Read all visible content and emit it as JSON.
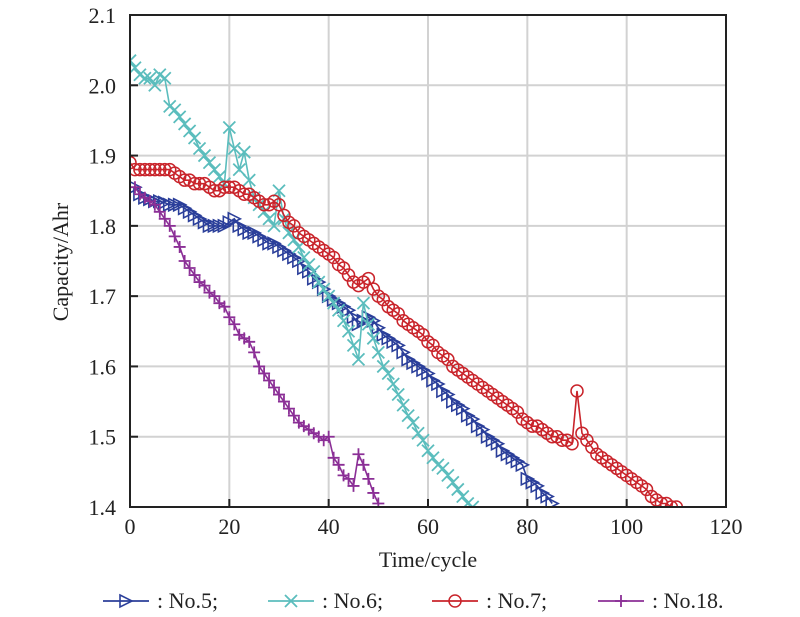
{
  "chart_data": {
    "type": "line",
    "title": "",
    "xlabel": "Time/cycle",
    "ylabel": "Capacity/Ahr",
    "xlim": [
      0,
      120
    ],
    "ylim": [
      1.4,
      2.1
    ],
    "xticks": [
      0,
      20,
      40,
      60,
      80,
      100,
      120
    ],
    "xtick_labels": [
      "0",
      "20",
      "40",
      "60",
      "80",
      "100",
      "120"
    ],
    "yticks": [
      1.4,
      1.5,
      1.6,
      1.7,
      1.8,
      1.9,
      2.0,
      2.1
    ],
    "ytick_labels": [
      "1.4",
      "1.5",
      "1.6",
      "1.7",
      "1.8",
      "1.9",
      "2.0",
      "2.1"
    ],
    "grid": true,
    "legend_position": "bottom",
    "series": [
      {
        "name": "No.5",
        "legend_label": ": No.5;",
        "color": "#2b3f9a",
        "marker": "triangle-right",
        "x": [
          1,
          2,
          3,
          4,
          5,
          6,
          7,
          8,
          9,
          10,
          11,
          12,
          13,
          14,
          15,
          16,
          17,
          18,
          19,
          20,
          21,
          22,
          23,
          24,
          25,
          26,
          27,
          28,
          29,
          30,
          31,
          32,
          33,
          34,
          35,
          36,
          37,
          38,
          39,
          40,
          41,
          42,
          43,
          44,
          45,
          46,
          47,
          48,
          49,
          50,
          51,
          52,
          53,
          54,
          55,
          56,
          57,
          58,
          59,
          60,
          61,
          62,
          63,
          64,
          65,
          66,
          67,
          68,
          69,
          70,
          71,
          72,
          73,
          74,
          75,
          76,
          77,
          78,
          79,
          80,
          81,
          82,
          83,
          84,
          85
        ],
        "y": [
          1.855,
          1.845,
          1.84,
          1.838,
          1.835,
          1.835,
          1.833,
          1.83,
          1.83,
          1.83,
          1.825,
          1.82,
          1.815,
          1.81,
          1.805,
          1.8,
          1.8,
          1.8,
          1.8,
          1.805,
          1.81,
          1.8,
          1.795,
          1.79,
          1.79,
          1.785,
          1.78,
          1.775,
          1.775,
          1.77,
          1.765,
          1.76,
          1.755,
          1.75,
          1.74,
          1.735,
          1.725,
          1.72,
          1.71,
          1.7,
          1.695,
          1.69,
          1.685,
          1.68,
          1.67,
          1.66,
          1.665,
          1.67,
          1.665,
          1.655,
          1.645,
          1.64,
          1.635,
          1.63,
          1.62,
          1.61,
          1.605,
          1.6,
          1.595,
          1.59,
          1.58,
          1.575,
          1.565,
          1.56,
          1.55,
          1.545,
          1.54,
          1.53,
          1.525,
          1.515,
          1.51,
          1.5,
          1.495,
          1.49,
          1.48,
          1.475,
          1.47,
          1.465,
          1.46,
          1.44,
          1.435,
          1.43,
          1.42,
          1.415,
          1.405
        ]
      },
      {
        "name": "No.6",
        "legend_label": ": No.6;",
        "color": "#5bbdbd",
        "marker": "x",
        "x": [
          0,
          1,
          2,
          3,
          4,
          5,
          6,
          7,
          8,
          9,
          10,
          11,
          12,
          13,
          14,
          15,
          16,
          17,
          18,
          19,
          20,
          21,
          22,
          23,
          24,
          25,
          26,
          27,
          28,
          29,
          30,
          31,
          32,
          33,
          34,
          35,
          36,
          37,
          38,
          39,
          40,
          41,
          42,
          43,
          44,
          45,
          46,
          47,
          48,
          49,
          50,
          51,
          52,
          53,
          54,
          55,
          56,
          57,
          58,
          59,
          60,
          61,
          62,
          63,
          64,
          65,
          66,
          67,
          68,
          69
        ],
        "y": [
          2.035,
          2.025,
          2.015,
          2.01,
          2.01,
          2.0,
          2.015,
          2.01,
          1.97,
          1.965,
          1.955,
          1.945,
          1.935,
          1.925,
          1.91,
          1.9,
          1.89,
          1.88,
          1.87,
          1.86,
          1.94,
          1.91,
          1.88,
          1.905,
          1.865,
          1.84,
          1.83,
          1.82,
          1.81,
          1.8,
          1.85,
          1.81,
          1.79,
          1.78,
          1.77,
          1.755,
          1.745,
          1.735,
          1.72,
          1.71,
          1.7,
          1.69,
          1.68,
          1.665,
          1.65,
          1.63,
          1.61,
          1.69,
          1.66,
          1.64,
          1.62,
          1.6,
          1.59,
          1.575,
          1.56,
          1.545,
          1.53,
          1.52,
          1.505,
          1.495,
          1.48,
          1.47,
          1.46,
          1.455,
          1.445,
          1.435,
          1.425,
          1.415,
          1.405,
          1.4
        ]
      },
      {
        "name": "No.7",
        "legend_label": ": No.7;",
        "color": "#c9242b",
        "marker": "circle",
        "x": [
          0,
          1,
          2,
          3,
          4,
          5,
          6,
          7,
          8,
          9,
          10,
          11,
          12,
          13,
          14,
          15,
          16,
          17,
          18,
          19,
          20,
          21,
          22,
          23,
          24,
          25,
          26,
          27,
          28,
          29,
          30,
          31,
          32,
          33,
          34,
          35,
          36,
          37,
          38,
          39,
          40,
          41,
          42,
          43,
          44,
          45,
          46,
          47,
          48,
          49,
          50,
          51,
          52,
          53,
          54,
          55,
          56,
          57,
          58,
          59,
          60,
          61,
          62,
          63,
          64,
          65,
          66,
          67,
          68,
          69,
          70,
          71,
          72,
          73,
          74,
          75,
          76,
          77,
          78,
          79,
          80,
          81,
          82,
          83,
          84,
          85,
          86,
          87,
          88,
          89,
          90,
          91,
          92,
          93,
          94,
          95,
          96,
          97,
          98,
          99,
          100,
          101,
          102,
          103,
          104,
          105,
          106,
          107,
          108,
          109,
          110
        ],
        "y": [
          1.89,
          1.88,
          1.88,
          1.88,
          1.88,
          1.88,
          1.88,
          1.88,
          1.88,
          1.875,
          1.87,
          1.865,
          1.865,
          1.86,
          1.86,
          1.86,
          1.855,
          1.85,
          1.85,
          1.855,
          1.855,
          1.855,
          1.85,
          1.845,
          1.845,
          1.84,
          1.835,
          1.83,
          1.83,
          1.835,
          1.83,
          1.815,
          1.805,
          1.8,
          1.79,
          1.785,
          1.78,
          1.775,
          1.77,
          1.765,
          1.76,
          1.755,
          1.745,
          1.74,
          1.73,
          1.72,
          1.715,
          1.72,
          1.725,
          1.71,
          1.7,
          1.695,
          1.685,
          1.68,
          1.675,
          1.665,
          1.66,
          1.655,
          1.65,
          1.645,
          1.635,
          1.63,
          1.62,
          1.615,
          1.61,
          1.6,
          1.595,
          1.59,
          1.585,
          1.58,
          1.575,
          1.57,
          1.565,
          1.56,
          1.555,
          1.55,
          1.545,
          1.54,
          1.535,
          1.525,
          1.52,
          1.515,
          1.515,
          1.51,
          1.505,
          1.5,
          1.5,
          1.495,
          1.495,
          1.49,
          1.565,
          1.505,
          1.495,
          1.485,
          1.475,
          1.47,
          1.465,
          1.46,
          1.455,
          1.45,
          1.445,
          1.44,
          1.435,
          1.43,
          1.425,
          1.415,
          1.41,
          1.405,
          1.405,
          1.4,
          1.4
        ]
      },
      {
        "name": "No.18",
        "legend_label": ": No.18.",
        "color": "#8b2f96",
        "marker": "plus",
        "x": [
          1,
          2,
          3,
          4,
          5,
          6,
          7,
          8,
          9,
          10,
          11,
          12,
          13,
          14,
          15,
          16,
          17,
          18,
          19,
          20,
          21,
          22,
          23,
          24,
          25,
          26,
          27,
          28,
          29,
          30,
          31,
          32,
          33,
          34,
          35,
          36,
          37,
          38,
          39,
          40,
          41,
          42,
          43,
          44,
          45,
          46,
          47,
          48,
          49,
          50
        ],
        "y": [
          1.855,
          1.845,
          1.84,
          1.835,
          1.83,
          1.82,
          1.81,
          1.8,
          1.785,
          1.77,
          1.75,
          1.74,
          1.73,
          1.72,
          1.715,
          1.705,
          1.7,
          1.69,
          1.685,
          1.67,
          1.66,
          1.645,
          1.64,
          1.635,
          1.62,
          1.6,
          1.59,
          1.58,
          1.57,
          1.56,
          1.55,
          1.54,
          1.53,
          1.52,
          1.515,
          1.51,
          1.505,
          1.5,
          1.495,
          1.5,
          1.47,
          1.46,
          1.445,
          1.44,
          1.43,
          1.475,
          1.46,
          1.44,
          1.42,
          1.405
        ]
      }
    ]
  }
}
